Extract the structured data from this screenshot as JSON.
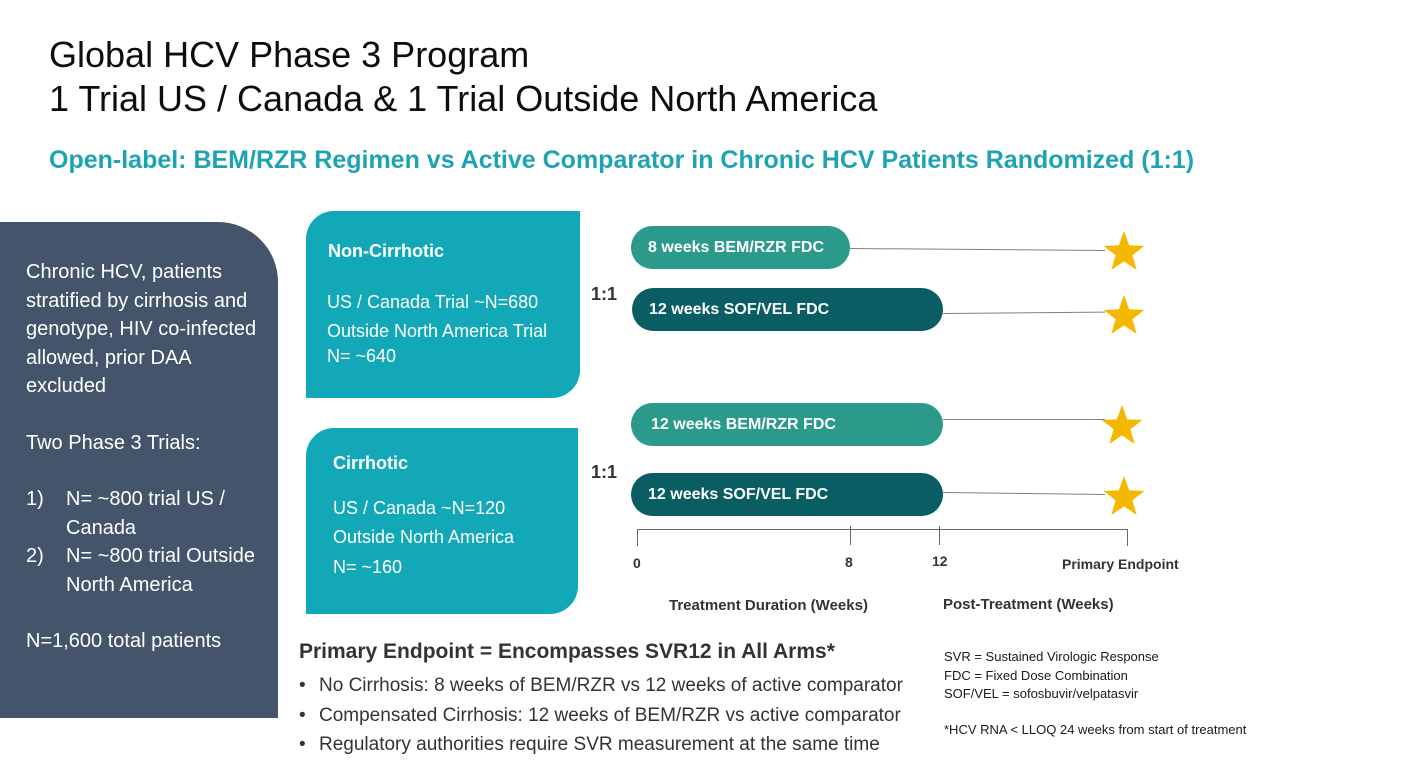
{
  "title": {
    "line1": "Global HCV Phase 3 Program",
    "line2": "1 Trial US / Canada & 1 Trial Outside North America"
  },
  "subtitle": "Open-label:  BEM/RZR Regimen vs Active Comparator in Chronic HCV Patients Randomized (1:1)",
  "left_panel": {
    "intro": "Chronic HCV, patients stratified by cirrhosis and genotype, HIV co-infected allowed, prior DAA excluded",
    "trials_heading": "Two Phase 3 Trials:",
    "trials": [
      {
        "num": "1)",
        "text": "N= ~800 trial US / Canada"
      },
      {
        "num": "2)",
        "text": "N= ~800 trial Outside North America"
      }
    ],
    "total": "N=1,600 total patients"
  },
  "cohorts": [
    {
      "title": "Non-Cirrhotic",
      "line1": "US  / Canada Trial ~N=680",
      "line2": "Outside North America Trial",
      "line3": "N= ~640",
      "ratio": "1:1",
      "arms": [
        {
          "label": "8 weeks BEM/RZR FDC",
          "kind": "bem",
          "weeks": 8
        },
        {
          "label": "12 weeks SOF/VEL FDC",
          "kind": "sof",
          "weeks": 12
        }
      ]
    },
    {
      "title": "Cirrhotic",
      "line1": "US / Canada ~N=120",
      "line2": "Outside North America",
      "line3": "N= ~160",
      "ratio": "1:1",
      "arms": [
        {
          "label": "12 weeks BEM/RZR FDC",
          "kind": "bem",
          "weeks": 12
        },
        {
          "label": "12 weeks SOF/VEL FDC",
          "kind": "sof",
          "weeks": 12
        }
      ]
    }
  ],
  "axis": {
    "ticks": [
      "0",
      "8",
      "12"
    ],
    "endpoint_label": "Primary Endpoint",
    "treatment_title": "Treatment Duration (Weeks)",
    "post_title": "Post-Treatment (Weeks)"
  },
  "endpoint": {
    "heading": "Primary Endpoint  = Encompasses SVR12 in All Arms*",
    "bullets": [
      "No Cirrhosis: 8 weeks of BEM/RZR vs 12 weeks of active comparator",
      "Compensated Cirrhosis: 12 weeks of BEM/RZR vs active comparator",
      "Regulatory authorities require SVR measurement at the same time"
    ],
    "bullet_glyph": "•"
  },
  "abbreviations": [
    "SVR = Sustained Virologic Response",
    "FDC = Fixed Dose Combination",
    "SOF/VEL = sofosbuvir/velpatasvir"
  ],
  "footnote": "*HCV RNA < LLOQ 24 weeks from start of treatment",
  "colors": {
    "teal_accent": "#1ea3b2",
    "cohort_box": "#13a8b8",
    "bem_arm": "#2c9a8a",
    "sof_arm": "#0a5d63",
    "panel": "#44546a",
    "star": "#f5b800"
  },
  "icons": {
    "endpoint_marker": "star-icon"
  }
}
